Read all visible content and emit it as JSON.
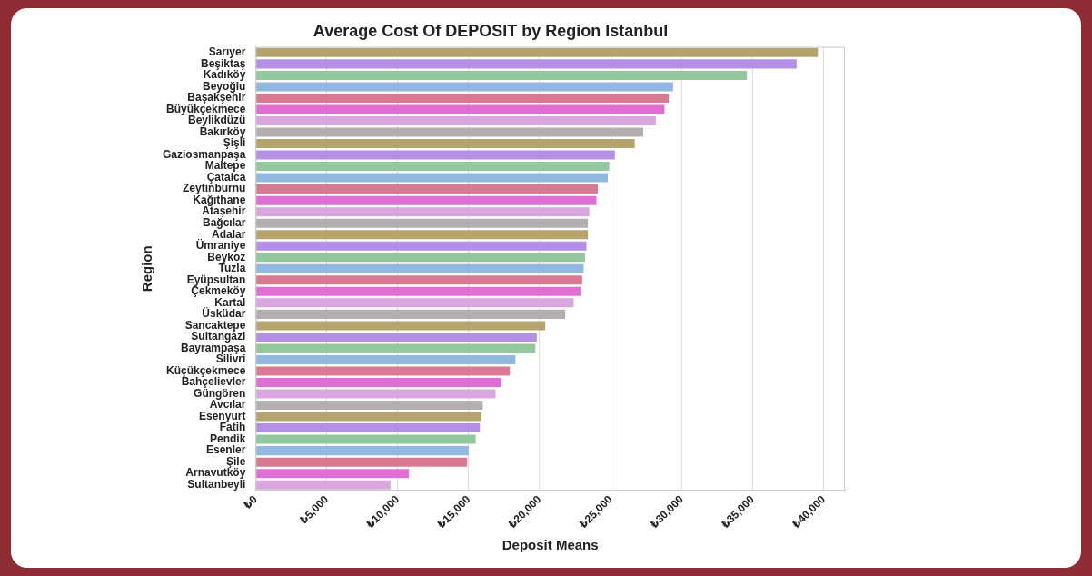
{
  "chart_data": {
    "type": "bar",
    "orientation": "horizontal",
    "title": "Average Cost Of DEPOSIT by Region Istanbul",
    "x_label": "Deposit Means",
    "y_label": "Region",
    "categories": [
      "Sarıyer",
      "Beşiktaş",
      "Kadıköy",
      "Beyoğlu",
      "Başakşehir",
      "Büyükçekmece",
      "Beylikdüzü",
      "Bakırköy",
      "Şişli",
      "Gaziosmanpaşa",
      "Maltepe",
      "Çatalca",
      "Zeytinburnu",
      "Kağıthane",
      "Ataşehir",
      "Bağcılar",
      "Adalar",
      "Ümraniye",
      "Beykoz",
      "Tuzla",
      "Eyüpsultan",
      "Çekmeköy",
      "Kartal",
      "Üsküdar",
      "Sancaktepe",
      "Sultangazi",
      "Bayrampaşa",
      "Silivri",
      "Küçükçekmece",
      "Bahçelievler",
      "Güngören",
      "Avcılar",
      "Esenyurt",
      "Fatih",
      "Pendik",
      "Esenler",
      "Şile",
      "Arnavutköy",
      "Sultanbeyli"
    ],
    "values": [
      39600,
      38100,
      34600,
      29400,
      29100,
      28800,
      28200,
      27300,
      26700,
      25300,
      24900,
      24800,
      24100,
      24000,
      23500,
      23400,
      23400,
      23300,
      23200,
      23100,
      23000,
      22900,
      22400,
      21800,
      20400,
      19800,
      19700,
      18300,
      17900,
      17300,
      16900,
      16000,
      15900,
      15800,
      15500,
      15000,
      14900,
      10800,
      9500
    ],
    "colors": [
      "#b5a46e",
      "#b48fe6",
      "#93c79d",
      "#91b8e0",
      "#d97a95",
      "#e06fd3",
      "#d9a6e0",
      "#b3aeb0",
      "#b5a46e",
      "#b48fe6",
      "#93c79d",
      "#91b8e0",
      "#d97a95",
      "#e06fd3",
      "#d9a6e0",
      "#b3aeb0",
      "#b5a46e",
      "#b48fe6",
      "#93c79d",
      "#91b8e0",
      "#d97a95",
      "#e06fd3",
      "#d9a6e0",
      "#b3aeb0",
      "#b5a46e",
      "#b48fe6",
      "#93c79d",
      "#91b8e0",
      "#d97a95",
      "#e06fd3",
      "#d9a6e0",
      "#b3aeb0",
      "#b5a46e",
      "#b48fe6",
      "#93c79d",
      "#91b8e0",
      "#d97a95",
      "#e06fd3",
      "#d9a6e0"
    ],
    "xlim": [
      0,
      41500
    ],
    "xticks": [
      {
        "value": 0,
        "label": "₺0"
      },
      {
        "value": 5000,
        "label": "₺5,000"
      },
      {
        "value": 10000,
        "label": "₺10,000"
      },
      {
        "value": 15000,
        "label": "₺15,000"
      },
      {
        "value": 20000,
        "label": "₺20,000"
      },
      {
        "value": 25000,
        "label": "₺25,000"
      },
      {
        "value": 30000,
        "label": "₺30,000"
      },
      {
        "value": 35000,
        "label": "₺35,000"
      },
      {
        "value": 40000,
        "label": "₺40,000"
      }
    ],
    "grid": true
  }
}
